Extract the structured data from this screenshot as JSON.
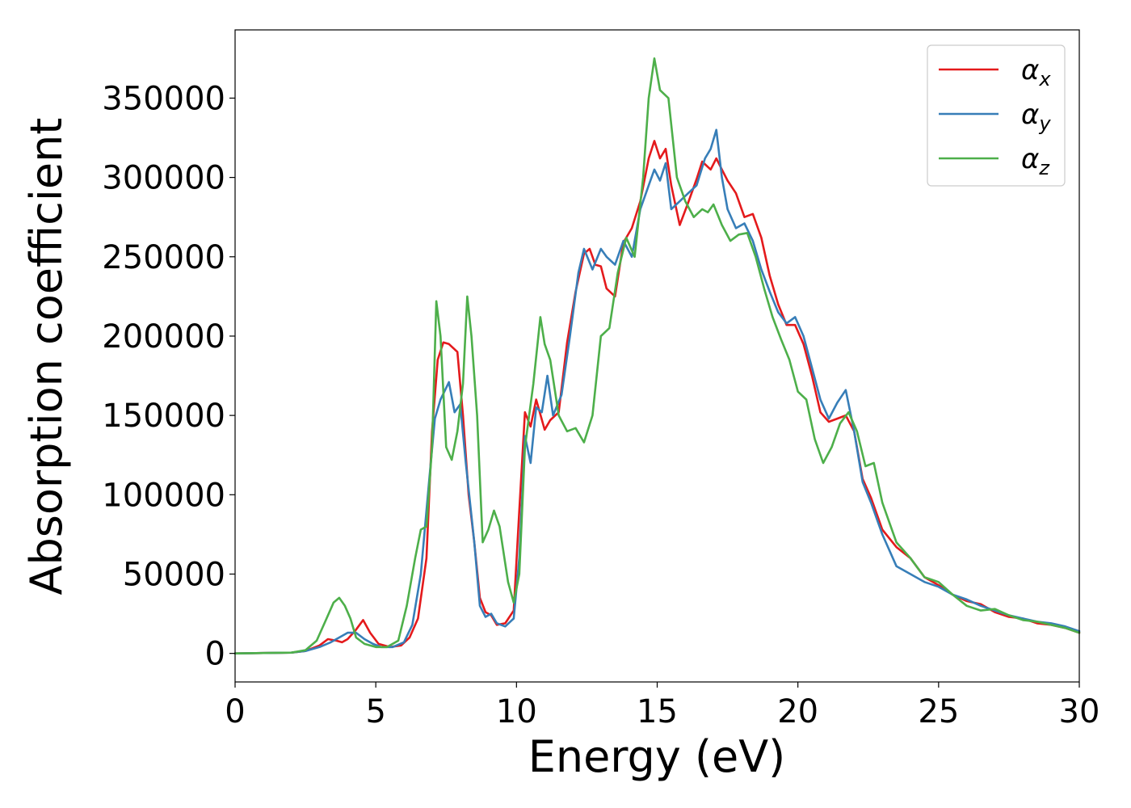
{
  "chart_data": {
    "type": "line",
    "xlabel": "Energy (eV)",
    "ylabel": "Absorption coefficient",
    "xlim": [
      0,
      30
    ],
    "ylim": [
      -18000,
      393000
    ],
    "xticks": [
      0,
      5,
      10,
      15,
      20,
      25,
      30
    ],
    "yticks": [
      0,
      50000,
      100000,
      150000,
      200000,
      250000,
      300000,
      350000
    ],
    "grid": false,
    "legend_position": "top-right",
    "series": [
      {
        "name": "α",
        "subscript": "x",
        "color": "#e41a1c",
        "x": [
          0,
          2.0,
          2.5,
          3.0,
          3.3,
          3.6,
          3.8,
          4.0,
          4.3,
          4.55,
          4.8,
          5.1,
          5.5,
          5.9,
          6.2,
          6.5,
          6.8,
          7.0,
          7.2,
          7.4,
          7.6,
          7.9,
          8.1,
          8.3,
          8.5,
          8.7,
          8.9,
          9.1,
          9.3,
          9.6,
          9.9,
          10.1,
          10.3,
          10.5,
          10.7,
          11.0,
          11.2,
          11.5,
          11.8,
          12.1,
          12.4,
          12.6,
          12.8,
          13.0,
          13.2,
          13.5,
          13.8,
          14.1,
          14.4,
          14.7,
          14.9,
          15.1,
          15.3,
          15.5,
          15.8,
          16.1,
          16.4,
          16.6,
          16.9,
          17.1,
          17.3,
          17.5,
          17.8,
          18.1,
          18.4,
          18.7,
          19.0,
          19.3,
          19.6,
          19.9,
          20.2,
          20.5,
          20.8,
          21.1,
          21.4,
          21.7,
          22.0,
          22.3,
          22.6,
          23.0,
          23.5,
          24.0,
          24.5,
          25.0,
          25.5,
          26.0,
          26.5,
          27.0,
          27.5,
          28.0,
          28.5,
          29.0,
          29.5,
          30.0
        ],
        "y": [
          0,
          500,
          1500,
          5000,
          9000,
          8000,
          7000,
          9000,
          15000,
          21000,
          13000,
          6000,
          4000,
          5000,
          10000,
          22000,
          60000,
          140000,
          185000,
          196000,
          195000,
          190000,
          150000,
          100000,
          70000,
          35000,
          26000,
          24000,
          18000,
          19000,
          27000,
          90000,
          152000,
          143000,
          160000,
          141000,
          147000,
          152000,
          196000,
          228000,
          252000,
          255000,
          245000,
          244000,
          230000,
          225000,
          259000,
          268000,
          285000,
          312000,
          323000,
          312000,
          318000,
          295000,
          270000,
          284000,
          299000,
          310000,
          305000,
          312000,
          305000,
          298000,
          290000,
          275000,
          277000,
          262000,
          238000,
          220000,
          207000,
          207000,
          195000,
          175000,
          152000,
          146000,
          148000,
          150000,
          140000,
          110000,
          98000,
          78000,
          67000,
          60000,
          48000,
          43000,
          37000,
          33000,
          31000,
          26000,
          23000,
          22000,
          19000,
          18000,
          16000,
          13000
        ]
      },
      {
        "name": "α",
        "subscript": "y",
        "color": "#377eb8",
        "x": [
          0,
          2.0,
          2.5,
          3.0,
          3.4,
          3.7,
          4.0,
          4.3,
          4.6,
          4.9,
          5.2,
          5.6,
          6.0,
          6.3,
          6.6,
          6.9,
          7.1,
          7.3,
          7.6,
          7.8,
          8.0,
          8.2,
          8.5,
          8.7,
          8.9,
          9.1,
          9.3,
          9.6,
          9.9,
          10.1,
          10.3,
          10.5,
          10.7,
          10.9,
          11.1,
          11.3,
          11.6,
          11.9,
          12.2,
          12.4,
          12.7,
          13.0,
          13.2,
          13.5,
          13.8,
          14.1,
          14.4,
          14.7,
          14.9,
          15.1,
          15.3,
          15.5,
          15.8,
          16.1,
          16.4,
          16.7,
          16.9,
          17.1,
          17.3,
          17.5,
          17.8,
          18.1,
          18.4,
          18.7,
          19.0,
          19.3,
          19.6,
          19.9,
          20.2,
          20.5,
          20.8,
          21.1,
          21.4,
          21.7,
          22.0,
          22.3,
          22.6,
          23.0,
          23.5,
          24.0,
          24.5,
          25.0,
          25.5,
          26.0,
          26.5,
          27.0,
          27.5,
          28.0,
          28.5,
          29.0,
          29.5,
          30.0
        ],
        "y": [
          0,
          500,
          1500,
          4000,
          7000,
          10000,
          13000,
          13000,
          9000,
          6000,
          4000,
          4000,
          7000,
          18000,
          50000,
          110000,
          148000,
          160000,
          171000,
          152000,
          157000,
          120000,
          70000,
          30000,
          23000,
          25000,
          19000,
          17000,
          22000,
          60000,
          137000,
          120000,
          155000,
          152000,
          175000,
          150000,
          163000,
          200000,
          240000,
          255000,
          242000,
          255000,
          250000,
          245000,
          260000,
          250000,
          280000,
          295000,
          305000,
          298000,
          309000,
          280000,
          285000,
          290000,
          295000,
          312000,
          318000,
          330000,
          300000,
          280000,
          268000,
          271000,
          260000,
          242000,
          228000,
          215000,
          208000,
          212000,
          200000,
          180000,
          160000,
          148000,
          158000,
          166000,
          140000,
          108000,
          95000,
          75000,
          55000,
          50000,
          45000,
          42000,
          37000,
          34000,
          30000,
          27000,
          24000,
          22000,
          20000,
          19000,
          17000,
          14000
        ]
      },
      {
        "name": "α",
        "subscript": "z",
        "color": "#4daf4a",
        "x": [
          0,
          2.0,
          2.5,
          2.9,
          3.2,
          3.5,
          3.7,
          3.9,
          4.1,
          4.3,
          4.6,
          5.0,
          5.4,
          5.8,
          6.1,
          6.4,
          6.6,
          6.8,
          7.0,
          7.15,
          7.3,
          7.5,
          7.7,
          7.9,
          8.1,
          8.25,
          8.4,
          8.6,
          8.8,
          9.0,
          9.2,
          9.4,
          9.7,
          9.9,
          10.1,
          10.3,
          10.6,
          10.85,
          11.0,
          11.2,
          11.5,
          11.8,
          12.1,
          12.4,
          12.7,
          13.0,
          13.3,
          13.6,
          13.9,
          14.2,
          14.5,
          14.7,
          14.9,
          15.1,
          15.4,
          15.7,
          16.0,
          16.3,
          16.6,
          16.8,
          17.0,
          17.3,
          17.6,
          17.9,
          18.2,
          18.5,
          18.8,
          19.1,
          19.4,
          19.7,
          20.0,
          20.3,
          20.6,
          20.9,
          21.2,
          21.5,
          21.8,
          22.1,
          22.4,
          22.7,
          23.0,
          23.5,
          24.0,
          24.5,
          25.0,
          25.5,
          26.0,
          26.5,
          27.0,
          27.5,
          28.0,
          28.5,
          29.0,
          29.5,
          30.0
        ],
        "y": [
          0,
          500,
          2000,
          8000,
          20000,
          32000,
          35000,
          30000,
          22000,
          10000,
          6000,
          4000,
          4000,
          8000,
          30000,
          60000,
          78000,
          80000,
          130000,
          222000,
          200000,
          130000,
          122000,
          140000,
          170000,
          225000,
          200000,
          150000,
          70000,
          78000,
          90000,
          80000,
          45000,
          32000,
          50000,
          130000,
          170000,
          212000,
          195000,
          185000,
          150000,
          140000,
          142000,
          133000,
          150000,
          200000,
          205000,
          240000,
          262000,
          250000,
          300000,
          350000,
          375000,
          355000,
          350000,
          300000,
          285000,
          275000,
          280000,
          278000,
          283000,
          270000,
          260000,
          264000,
          265000,
          250000,
          230000,
          212000,
          198000,
          185000,
          165000,
          160000,
          135000,
          120000,
          130000,
          145000,
          152000,
          140000,
          118000,
          120000,
          95000,
          70000,
          60000,
          48000,
          45000,
          37000,
          30000,
          27000,
          28000,
          24000,
          21000,
          20000,
          18000,
          16000,
          13000
        ]
      }
    ]
  }
}
